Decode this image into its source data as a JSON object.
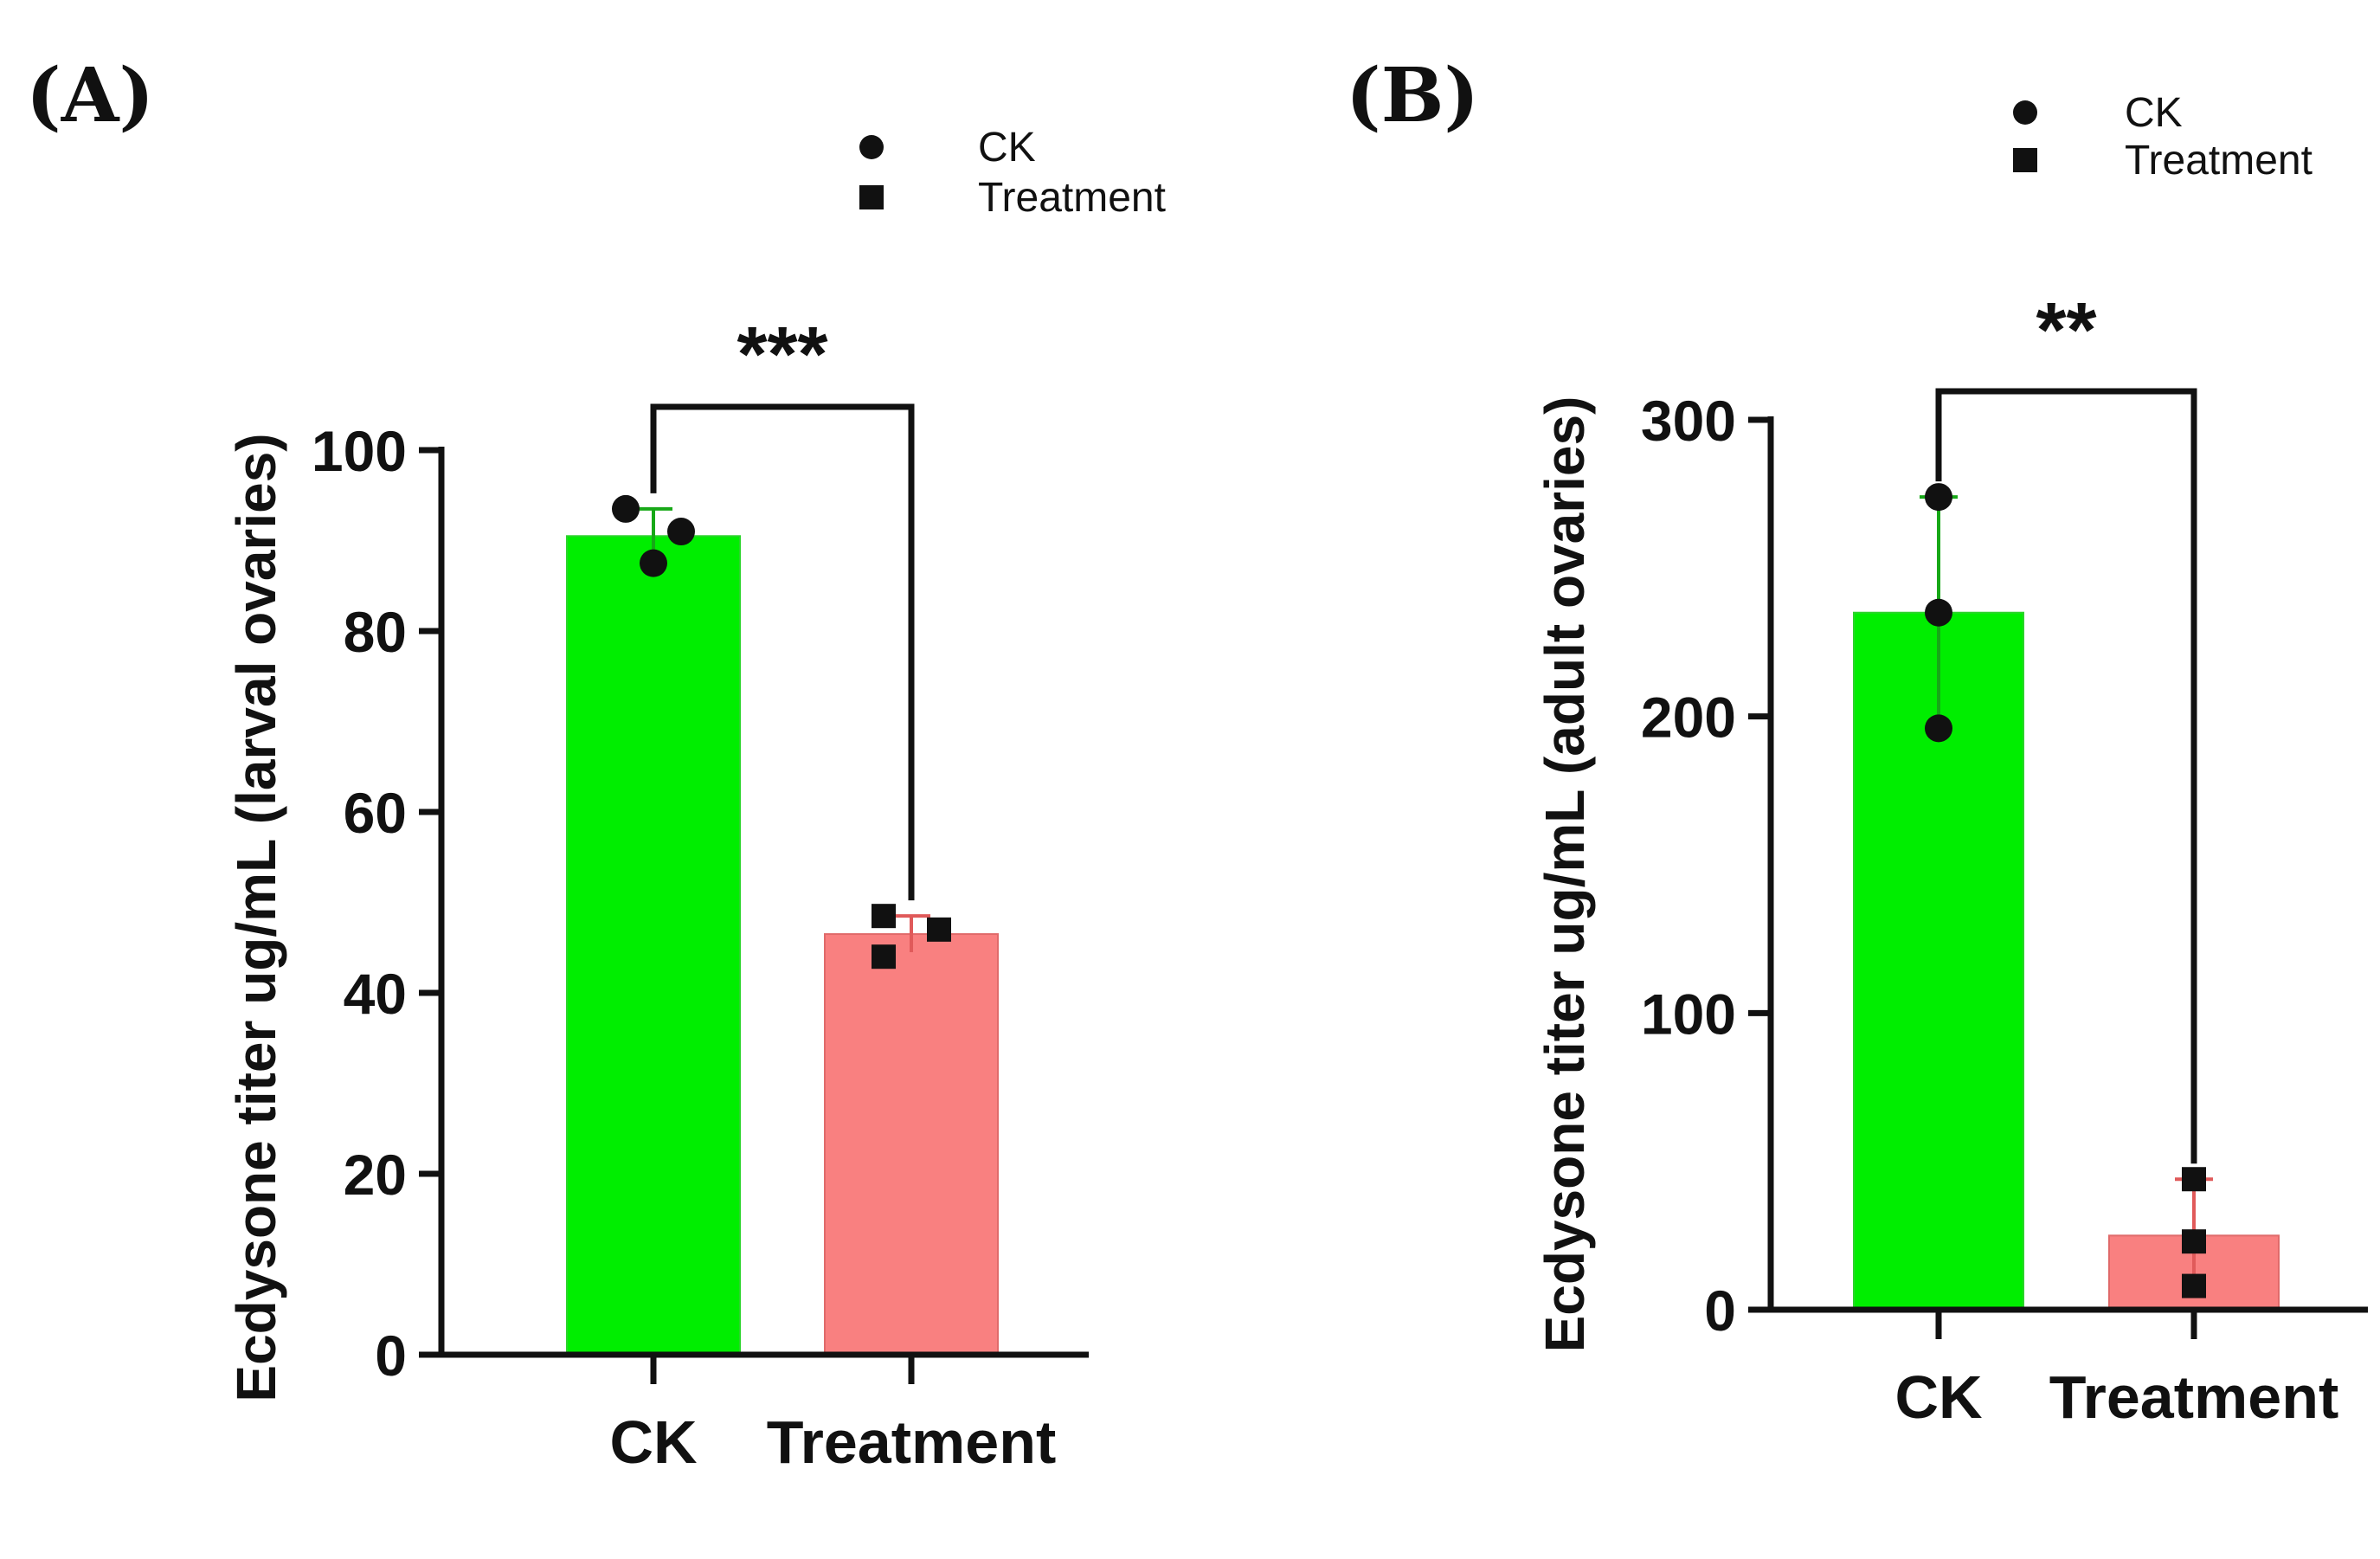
{
  "chart_data": [
    {
      "type": "bar",
      "panel_label": "(A)",
      "categories": [
        "CK",
        "Treatment"
      ],
      "values": [
        90.5,
        46.5
      ],
      "error": [
        3,
        2
      ],
      "points": [
        [
          93.5,
          87.5,
          91
        ],
        [
          48.5,
          44,
          47
        ]
      ],
      "markers": [
        "circle",
        "square"
      ],
      "colors": [
        "#00ee00",
        "#f98080"
      ],
      "errorColors": [
        "#17a817",
        "#e05a5a"
      ],
      "ylabel": "Ecdysone titer ug/mL (larval ovaries)",
      "ylim": [
        0,
        100
      ],
      "yticks": [
        0,
        20,
        40,
        60,
        80,
        100
      ],
      "significance": "***",
      "legend": [
        {
          "label": "CK",
          "marker": "circle"
        },
        {
          "label": "Treatment",
          "marker": "square"
        }
      ],
      "legend_position": "top-right"
    },
    {
      "type": "bar",
      "panel_label": "(B)",
      "categories": [
        "CK",
        "Treatment"
      ],
      "values": [
        235,
        25
      ],
      "error": [
        39,
        19
      ],
      "points": [
        [
          274,
          235,
          196
        ],
        [
          44,
          23,
          8
        ]
      ],
      "markers": [
        "circle",
        "square"
      ],
      "colors": [
        "#00ee00",
        "#f98080"
      ],
      "errorColors": [
        "#17a817",
        "#e05a5a"
      ],
      "ylabel": "Ecdysone titer ug/mL (adult ovaries)",
      "ylim": [
        0,
        300
      ],
      "yticks": [
        0,
        100,
        200,
        300
      ],
      "significance": "**",
      "legend": [
        {
          "label": "CK",
          "marker": "circle"
        },
        {
          "label": "Treatment",
          "marker": "square"
        }
      ],
      "legend_position": "top-right"
    }
  ]
}
